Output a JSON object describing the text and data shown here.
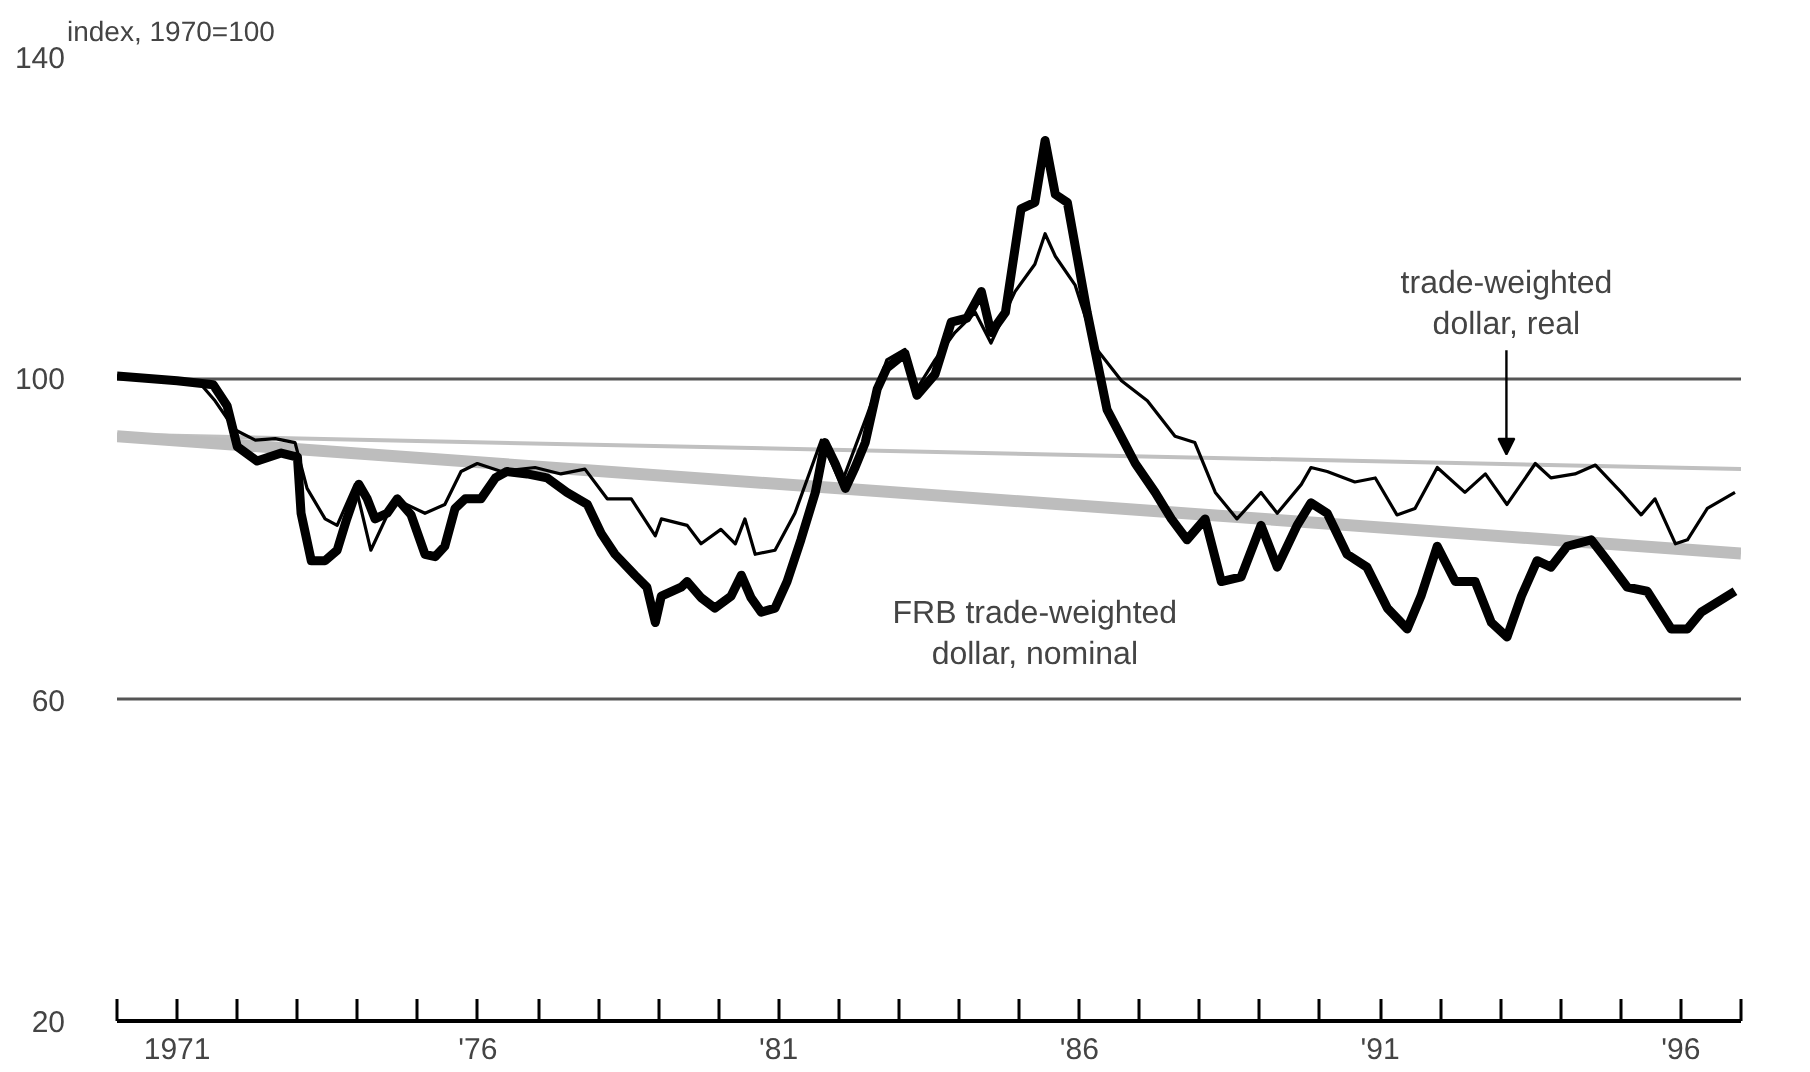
{
  "chart_data": {
    "type": "line",
    "ylabel": "index, 1970=100",
    "xlim": [
      1970,
      1997
    ],
    "ylim": [
      20,
      140
    ],
    "yticks": [
      20,
      60,
      100,
      140
    ],
    "xticks": [
      {
        "value": 1970,
        "label": null
      },
      {
        "value": 1971,
        "label": "1971"
      },
      {
        "value": 1972,
        "label": null
      },
      {
        "value": 1973,
        "label": null
      },
      {
        "value": 1974,
        "label": null
      },
      {
        "value": 1975,
        "label": null
      },
      {
        "value": 1976,
        "label": "'76"
      },
      {
        "value": 1977,
        "label": null
      },
      {
        "value": 1978,
        "label": null
      },
      {
        "value": 1979,
        "label": null
      },
      {
        "value": 1980,
        "label": null
      },
      {
        "value": 1981,
        "label": "'81"
      },
      {
        "value": 1982,
        "label": null
      },
      {
        "value": 1983,
        "label": null
      },
      {
        "value": 1984,
        "label": null
      },
      {
        "value": 1985,
        "label": null
      },
      {
        "value": 1986,
        "label": "'86"
      },
      {
        "value": 1987,
        "label": null
      },
      {
        "value": 1988,
        "label": null
      },
      {
        "value": 1989,
        "label": null
      },
      {
        "value": 1990,
        "label": null
      },
      {
        "value": 1991,
        "label": "'91"
      },
      {
        "value": 1992,
        "label": null
      },
      {
        "value": 1993,
        "label": null
      },
      {
        "value": 1994,
        "label": null
      },
      {
        "value": 1995,
        "label": null
      },
      {
        "value": 1996,
        "label": "'96"
      },
      {
        "value": 1997,
        "label": null
      }
    ],
    "grid": "y",
    "marker": "none",
    "line_style": "solid",
    "series": [
      {
        "color": "#c0c0c0",
        "x": [
          1970,
          1997
        ],
        "values": [
          93.0,
          88.7
        ]
      },
      {
        "color": "#bdbdbd",
        "x": [
          1970,
          1997
        ],
        "values": [
          92.8,
          78.2
        ]
      },
      {
        "color": "#000000",
        "x": [
          1970.0,
          1971.0,
          1971.4,
          1971.63,
          1971.96,
          1972.3,
          1972.63,
          1972.96,
          1973.16,
          1973.46,
          1973.66,
          1973.96,
          1974.22,
          1974.62,
          1975.12,
          1975.45,
          1975.72,
          1975.99,
          1976.39,
          1976.95,
          1977.38,
          1977.78,
          1978.15,
          1978.55,
          1978.95,
          1979.05,
          1979.48,
          1979.71,
          1980.04,
          1980.28,
          1980.44,
          1980.61,
          1980.94,
          1981.27,
          1981.71,
          1982.04,
          1982.47,
          1982.8,
          1983.1,
          1983.3,
          1983.6,
          1983.93,
          1984.27,
          1984.53,
          1984.93,
          1985.26,
          1985.43,
          1985.6,
          1985.93,
          1986.26,
          1986.7,
          1987.13,
          1987.59,
          1987.92,
          1988.26,
          1988.62,
          1989.02,
          1989.29,
          1989.69,
          1989.85,
          1990.12,
          1990.58,
          1990.92,
          1991.28,
          1991.58,
          1991.95,
          1992.41,
          1992.75,
          1993.11,
          1993.58,
          1993.84,
          1994.24,
          1994.58,
          1995.01,
          1995.34,
          1995.57,
          1995.91,
          1996.11,
          1996.44,
          1996.9
        ],
        "values": [
          100.3,
          99.7,
          99.2,
          97.2,
          93.6,
          92.3,
          92.5,
          92.0,
          86.3,
          82.5,
          81.7,
          86.8,
          78.6,
          85.0,
          83.2,
          84.3,
          88.4,
          89.4,
          88.4,
          88.9,
          88.1,
          88.7,
          85.0,
          85.0,
          80.4,
          82.5,
          81.7,
          79.4,
          81.2,
          79.4,
          82.5,
          78.1,
          78.6,
          83.2,
          92.3,
          86.8,
          95.4,
          102.3,
          103.6,
          98.7,
          102.3,
          105.7,
          108.2,
          104.4,
          110.8,
          114.2,
          118.0,
          115.2,
          111.6,
          103.9,
          99.7,
          97.2,
          92.8,
          92.0,
          85.8,
          82.5,
          85.8,
          83.2,
          86.8,
          88.9,
          88.4,
          87.1,
          87.6,
          83.0,
          83.8,
          88.9,
          85.8,
          88.1,
          84.3,
          89.4,
          87.6,
          88.1,
          89.2,
          85.8,
          83.0,
          85.0,
          79.4,
          79.9,
          83.8,
          85.8
        ]
      },
      {
        "name": "FRB trade-weighted\ndollar, nominal",
        "color": "#000000",
        "x": [
          1970.0,
          1971.0,
          1971.6,
          1971.83,
          1972.0,
          1972.33,
          1972.73,
          1973.0,
          1973.06,
          1973.23,
          1973.46,
          1973.66,
          1973.82,
          1974.02,
          1974.16,
          1974.29,
          1974.49,
          1974.66,
          1974.89,
          1975.12,
          1975.29,
          1975.45,
          1975.62,
          1975.79,
          1976.05,
          1976.29,
          1976.48,
          1976.82,
          1977.15,
          1977.48,
          1977.82,
          1978.05,
          1978.28,
          1978.61,
          1978.81,
          1978.95,
          1979.05,
          1979.38,
          1979.48,
          1979.71,
          1979.94,
          1980.21,
          1980.38,
          1980.54,
          1980.71,
          1980.94,
          1981.14,
          1981.37,
          1981.61,
          1981.77,
          1981.94,
          1982.11,
          1982.27,
          1982.44,
          1982.64,
          1982.8,
          1983.1,
          1983.3,
          1983.6,
          1983.87,
          1984.13,
          1984.37,
          1984.53,
          1984.77,
          1985.03,
          1985.26,
          1985.43,
          1985.6,
          1985.8,
          1986.13,
          1986.46,
          1986.93,
          1987.26,
          1987.53,
          1987.79,
          1988.09,
          1988.36,
          1988.69,
          1989.02,
          1989.29,
          1989.62,
          1989.85,
          1990.12,
          1990.45,
          1990.78,
          1991.12,
          1991.45,
          1991.68,
          1991.95,
          1992.25,
          1992.58,
          1992.85,
          1993.11,
          1993.35,
          1993.61,
          1993.84,
          1994.11,
          1994.51,
          1994.78,
          1995.11,
          1995.44,
          1995.84,
          1996.11,
          1996.34,
          1996.9
        ],
        "values": [
          100.3,
          99.7,
          99.2,
          96.6,
          91.5,
          89.7,
          90.7,
          90.2,
          83.2,
          77.3,
          77.3,
          78.6,
          82.5,
          86.8,
          85.0,
          82.5,
          83.2,
          85.0,
          83.0,
          78.1,
          77.8,
          79.1,
          83.8,
          85.0,
          85.0,
          87.6,
          88.4,
          88.1,
          87.6,
          85.8,
          84.3,
          80.7,
          78.1,
          75.5,
          74.0,
          69.6,
          72.9,
          74.0,
          74.7,
          72.7,
          71.4,
          72.9,
          75.5,
          72.7,
          70.9,
          71.4,
          74.7,
          79.9,
          85.8,
          92.0,
          89.4,
          86.3,
          88.9,
          92.0,
          98.7,
          101.3,
          103.1,
          97.9,
          100.5,
          107.0,
          107.5,
          110.8,
          105.7,
          108.2,
          121.1,
          121.9,
          129.6,
          122.9,
          121.9,
          108.2,
          96.1,
          89.4,
          85.8,
          82.5,
          79.9,
          82.5,
          74.7,
          75.3,
          81.7,
          76.5,
          81.7,
          84.5,
          83.2,
          78.1,
          76.5,
          71.4,
          68.8,
          72.9,
          79.1,
          74.7,
          74.7,
          69.6,
          67.8,
          72.9,
          77.3,
          76.5,
          79.1,
          79.9,
          77.3,
          74.0,
          73.5,
          68.8,
          68.8,
          70.9,
          73.5
        ]
      }
    ],
    "annotations": [
      {
        "text": "trade-weighted\ndollar, real",
        "x": 1993.1,
        "y": 89.5
      }
    ]
  }
}
